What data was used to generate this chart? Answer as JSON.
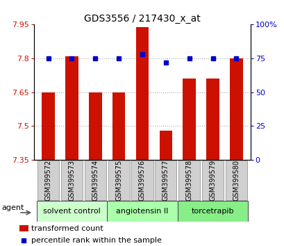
{
  "title": "GDS3556 / 217430_x_at",
  "samples": [
    "GSM399572",
    "GSM399573",
    "GSM399574",
    "GSM399575",
    "GSM399576",
    "GSM399577",
    "GSM399578",
    "GSM399579",
    "GSM399580"
  ],
  "bar_values": [
    7.65,
    7.81,
    7.65,
    7.65,
    7.94,
    7.48,
    7.71,
    7.71,
    7.8
  ],
  "dot_values": [
    75,
    75,
    75,
    75,
    78,
    72,
    75,
    75,
    75
  ],
  "ylim_left": [
    7.35,
    7.95
  ],
  "ylim_right": [
    0,
    100
  ],
  "yticks_left": [
    7.35,
    7.5,
    7.65,
    7.8,
    7.95
  ],
  "yticks_right": [
    0,
    25,
    50,
    75,
    100
  ],
  "ytick_labels_right": [
    "0",
    "25",
    "50",
    "75",
    "100%"
  ],
  "bar_color": "#cc1100",
  "dot_color": "#0000cc",
  "grid_color": "#aaaaaa",
  "bar_bottom": 7.35,
  "groups": [
    {
      "label": "solvent control",
      "start": 0,
      "end": 3,
      "color": "#ccffcc"
    },
    {
      "label": "angiotensin II",
      "start": 3,
      "end": 6,
      "color": "#aaffaa"
    },
    {
      "label": "torcetrapib",
      "start": 6,
      "end": 9,
      "color": "#88ee88"
    }
  ],
  "legend_bar_label": "transformed count",
  "legend_dot_label": "percentile rank within the sample",
  "agent_label": "agent",
  "xlabel_color": "#cc1100",
  "right_axis_color": "#0000cc",
  "tick_label_bg": "#d0d0d0",
  "title_fontsize": 10,
  "axis_fontsize": 8,
  "label_fontsize": 7,
  "group_fontsize": 8,
  "legend_fontsize": 8
}
